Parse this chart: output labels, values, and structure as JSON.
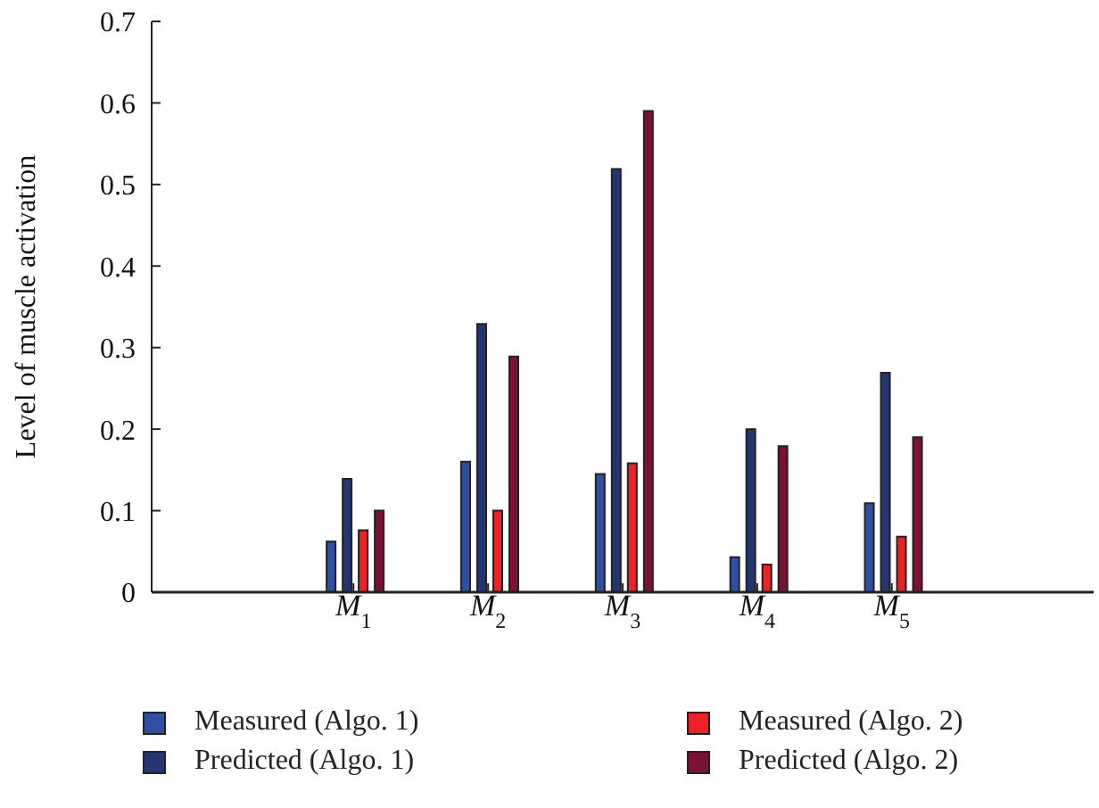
{
  "chart_data": {
    "type": "bar",
    "ylabel": "Level of muscle activation",
    "categories": [
      "M$_{1}$",
      "M$_{2}$",
      "M$_{3}$",
      "M$_{4}$",
      "M$_{5}$"
    ],
    "series": [
      {
        "name": "Measured (Algo. 1)",
        "color": "#2f4fa3",
        "values": [
          0.062,
          0.16,
          0.145,
          0.043,
          0.109
        ]
      },
      {
        "name": "Predicted (Algo. 1)",
        "color": "#233672",
        "values": [
          0.139,
          0.329,
          0.519,
          0.2,
          0.269
        ]
      },
      {
        "name": "Measured (Algo. 2)",
        "color": "#ec2227",
        "values": [
          0.076,
          0.1,
          0.158,
          0.034,
          0.068
        ]
      },
      {
        "name": "Predicted (Algo. 2)",
        "color": "#7d1133",
        "values": [
          0.1,
          0.289,
          0.59,
          0.179,
          0.19
        ]
      }
    ],
    "ylim": [
      0,
      0.7
    ],
    "yticks": [
      0,
      0.1,
      0.2,
      0.3,
      0.4,
      0.5,
      0.6,
      0.7
    ],
    "grid": false,
    "legend": "bottom"
  }
}
